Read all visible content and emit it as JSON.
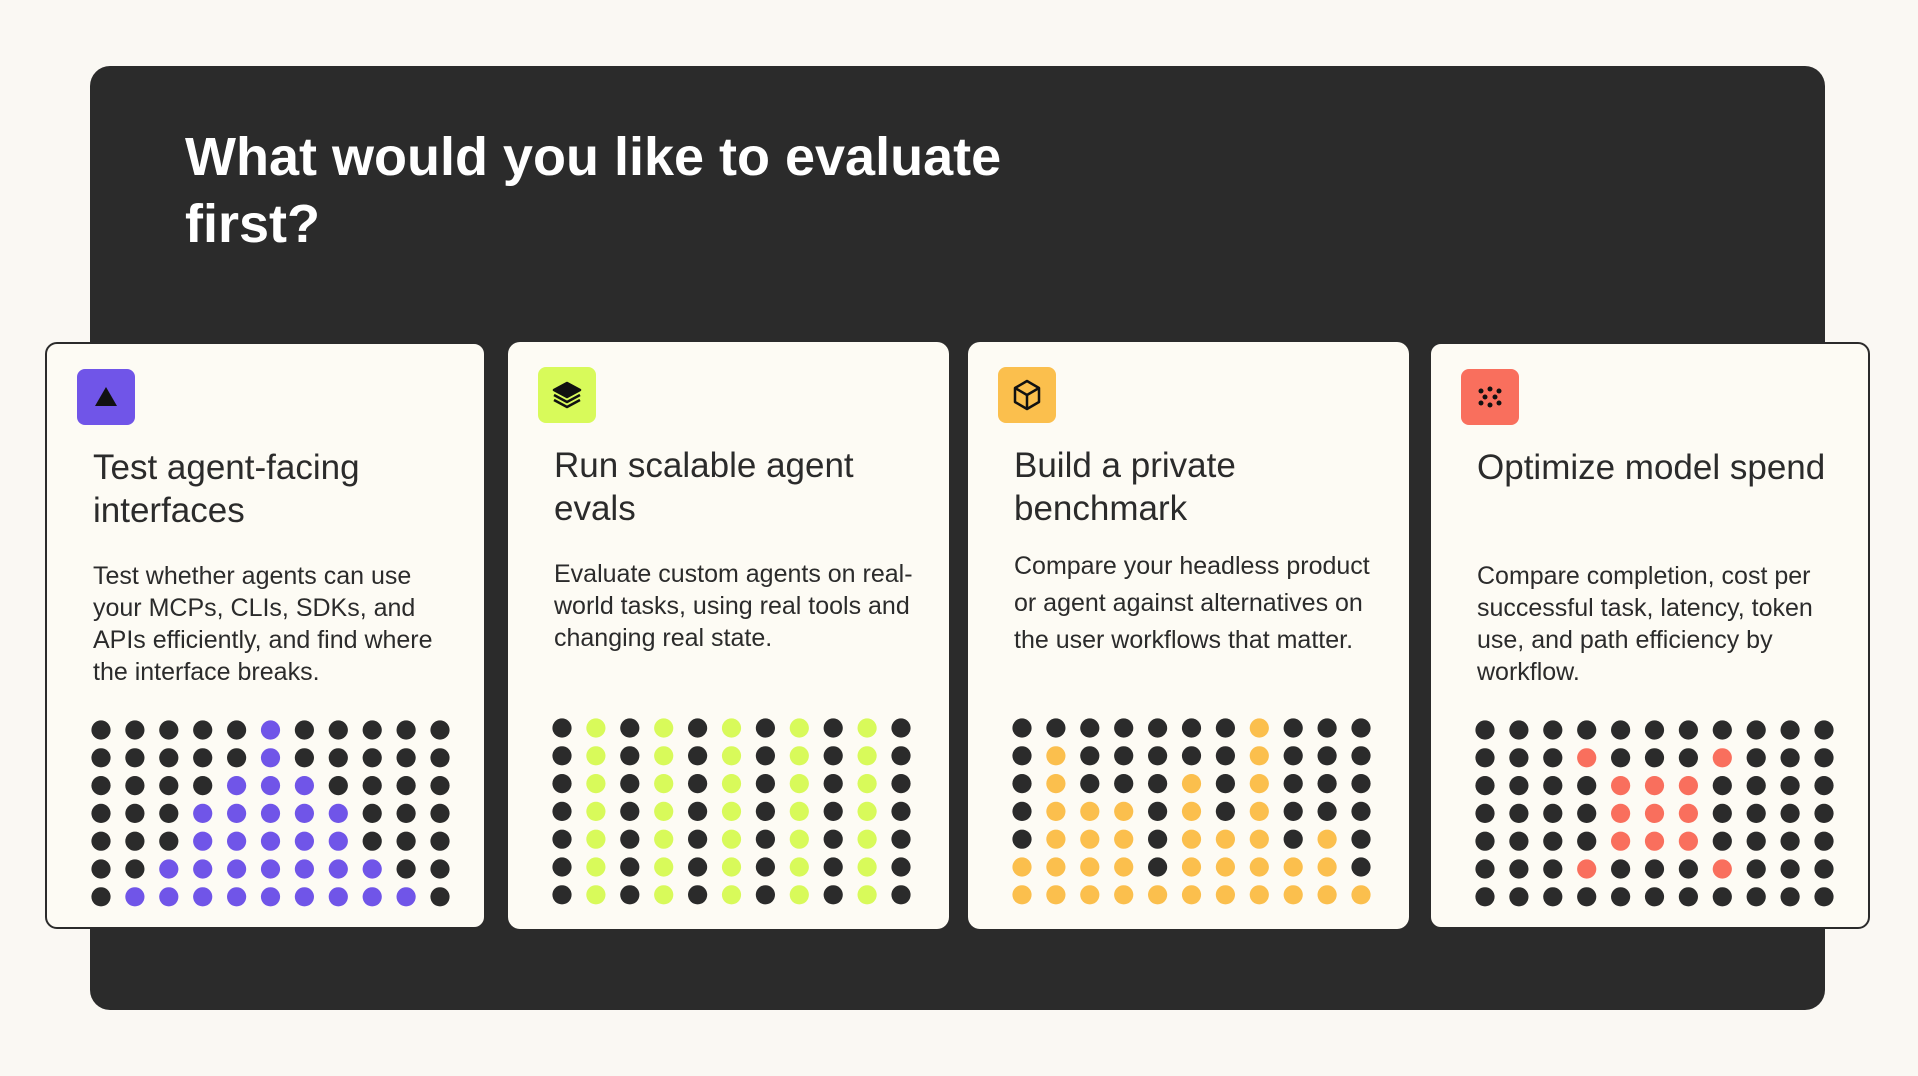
{
  "heading": "What would you like to evaluate first?",
  "cards": [
    {
      "title": "Test agent-facing interfaces",
      "description": "Test whether agents can use your MCPs, CLIs, SDKs, and APIs efficiently, and find where the interface breaks."
    },
    {
      "title": "Run scalable agent evals",
      "description": "Evaluate custom agents on real-world tasks, using real tools and changing real state."
    },
    {
      "title": "Build a private benchmark",
      "description": "Compare your headless product or agent against alternatives on the user workflows that matter."
    },
    {
      "title": "Optimize model spend",
      "description": "Compare completion, cost per successful task, latency, token use, and path efficiency by workflow."
    }
  ]
}
